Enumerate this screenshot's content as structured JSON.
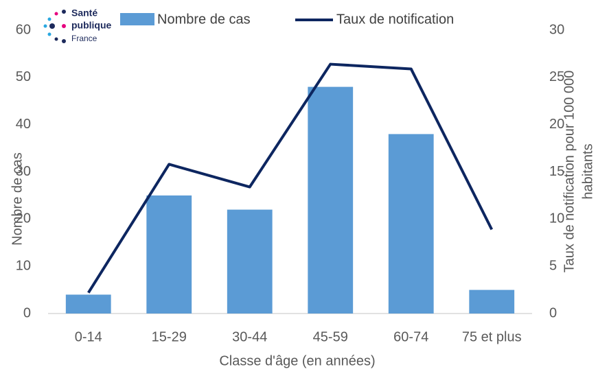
{
  "logo": {
    "lines": [
      "Santé",
      "publique",
      "France"
    ]
  },
  "chart_data": {
    "type": "bar-line",
    "categories": [
      "0-14",
      "15-29",
      "30-44",
      "45-59",
      "60-74",
      "75 et plus"
    ],
    "series": [
      {
        "name": "Nombre de cas",
        "type": "bar",
        "color": "#5b9bd5",
        "values": [
          4,
          25,
          22,
          48,
          38,
          5
        ]
      },
      {
        "name": "Taux de notification",
        "type": "line",
        "axis": "y2",
        "color": "#0d2660",
        "values": [
          2.2,
          15.8,
          13.4,
          26.4,
          25.9,
          8.9
        ]
      }
    ],
    "x_label": "Classe d'âge (en années)",
    "y_label": "Nombre de cas",
    "y2_label": [
      "Taux de notification pour 100 000",
      "habitants"
    ],
    "ylim": [
      0,
      60
    ],
    "yticks": [
      0,
      10,
      20,
      30,
      40,
      50,
      60
    ],
    "y2lim": [
      0,
      30
    ],
    "y2ticks": [
      0,
      5,
      10,
      15,
      20,
      25,
      30
    ],
    "grid": false
  }
}
